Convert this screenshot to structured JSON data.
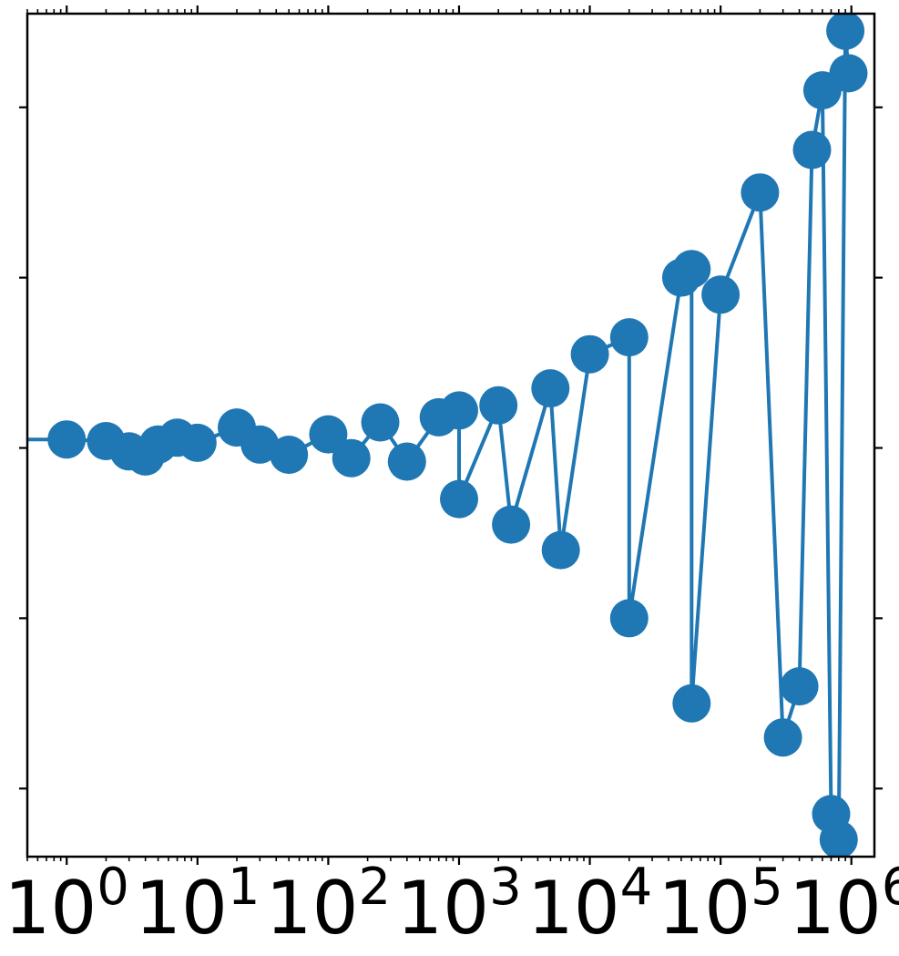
{
  "chart_data": {
    "type": "scatter",
    "title": "",
    "xlabel": "",
    "ylabel": "",
    "x_scale": "log",
    "xlim": [
      0.5,
      1500000
    ],
    "ylim": [
      -2.4,
      2.55
    ],
    "x_tick_labels": [
      {
        "base": "10",
        "exp": "0"
      },
      {
        "base": "10",
        "exp": "1"
      },
      {
        "base": "10",
        "exp": "2"
      },
      {
        "base": "10",
        "exp": "3"
      },
      {
        "base": "10",
        "exp": "4"
      },
      {
        "base": "10",
        "exp": "5"
      },
      {
        "base": "10",
        "exp": "6"
      }
    ],
    "y_ticks": [
      -2,
      -1,
      0,
      1,
      2
    ],
    "y_tick_labels_shown": false,
    "grid": false,
    "series": [
      {
        "color": "#1f77b4",
        "marker": "circle",
        "connected_line": true,
        "points": [
          {
            "x": 1,
            "y": 0.05
          },
          {
            "x": 2,
            "y": 0.04
          },
          {
            "x": 3,
            "y": -0.02
          },
          {
            "x": 4,
            "y": -0.05
          },
          {
            "x": 5,
            "y": 0.02
          },
          {
            "x": 7,
            "y": 0.06
          },
          {
            "x": 10,
            "y": 0.03
          },
          {
            "x": 20,
            "y": 0.12
          },
          {
            "x": 30,
            "y": 0.02
          },
          {
            "x": 50,
            "y": -0.04
          },
          {
            "x": 100,
            "y": 0.08
          },
          {
            "x": 150,
            "y": -0.06
          },
          {
            "x": 250,
            "y": 0.15
          },
          {
            "x": 400,
            "y": -0.08
          },
          {
            "x": 700,
            "y": 0.18
          },
          {
            "x": 1000,
            "y": 0.22
          },
          {
            "x": 1000,
            "y": -0.3
          },
          {
            "x": 2000,
            "y": 0.25
          },
          {
            "x": 2500,
            "y": -0.45
          },
          {
            "x": 5000,
            "y": 0.35
          },
          {
            "x": 6000,
            "y": -0.6
          },
          {
            "x": 10000,
            "y": 0.55
          },
          {
            "x": 20000,
            "y": 0.65
          },
          {
            "x": 20000,
            "y": -1.0
          },
          {
            "x": 50000,
            "y": 1.0
          },
          {
            "x": 60000,
            "y": 1.05
          },
          {
            "x": 60000,
            "y": -1.5
          },
          {
            "x": 100000,
            "y": 0.9
          },
          {
            "x": 200000,
            "y": 1.5
          },
          {
            "x": 300000,
            "y": -1.7
          },
          {
            "x": 400000,
            "y": -1.4
          },
          {
            "x": 500000,
            "y": 1.75
          },
          {
            "x": 600000,
            "y": 2.1
          },
          {
            "x": 700000,
            "y": -2.15
          },
          {
            "x": 800000,
            "y": -2.3
          },
          {
            "x": 900000,
            "y": 2.45
          },
          {
            "x": 950000,
            "y": 2.2
          }
        ]
      }
    ]
  }
}
